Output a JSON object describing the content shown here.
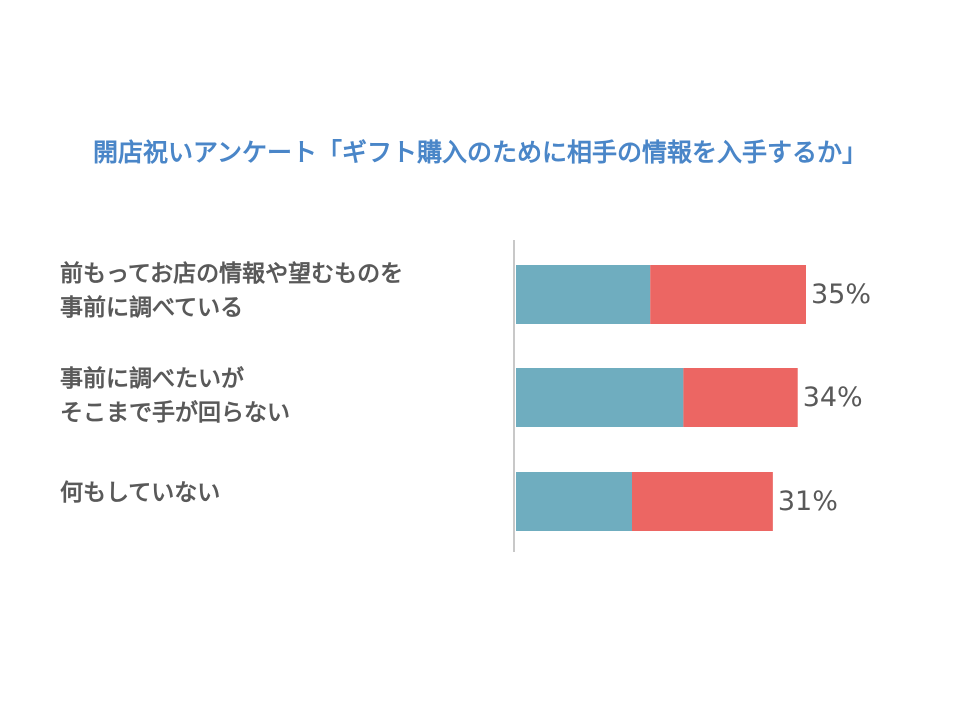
{
  "colors": {
    "title": "#4a86c8",
    "segment_a": "#6fadbf",
    "segment_b": "#ec6663",
    "axis": "#c8c8c8",
    "text": "#595959"
  },
  "chart_data": {
    "type": "bar",
    "orientation": "horizontal",
    "stacked": true,
    "title": "開店祝いアンケート「ギフト購入のために相手の情報を入手するか」",
    "xlim": [
      0,
      35
    ],
    "grid": false,
    "legend": "none",
    "categories": [
      [
        "前もってお店の情報や望むものを",
        "事前に調べている"
      ],
      [
        "事前に調べたいが",
        "そこまで手が回らない"
      ],
      [
        "何もしていない"
      ]
    ],
    "totals": [
      35,
      34,
      31
    ],
    "value_labels": [
      "35%",
      "34%",
      "31%"
    ],
    "series": [
      {
        "values": [
          16.2,
          20.2,
          14.0
        ]
      },
      {
        "values": [
          18.8,
          13.8,
          17.0
        ]
      }
    ]
  }
}
